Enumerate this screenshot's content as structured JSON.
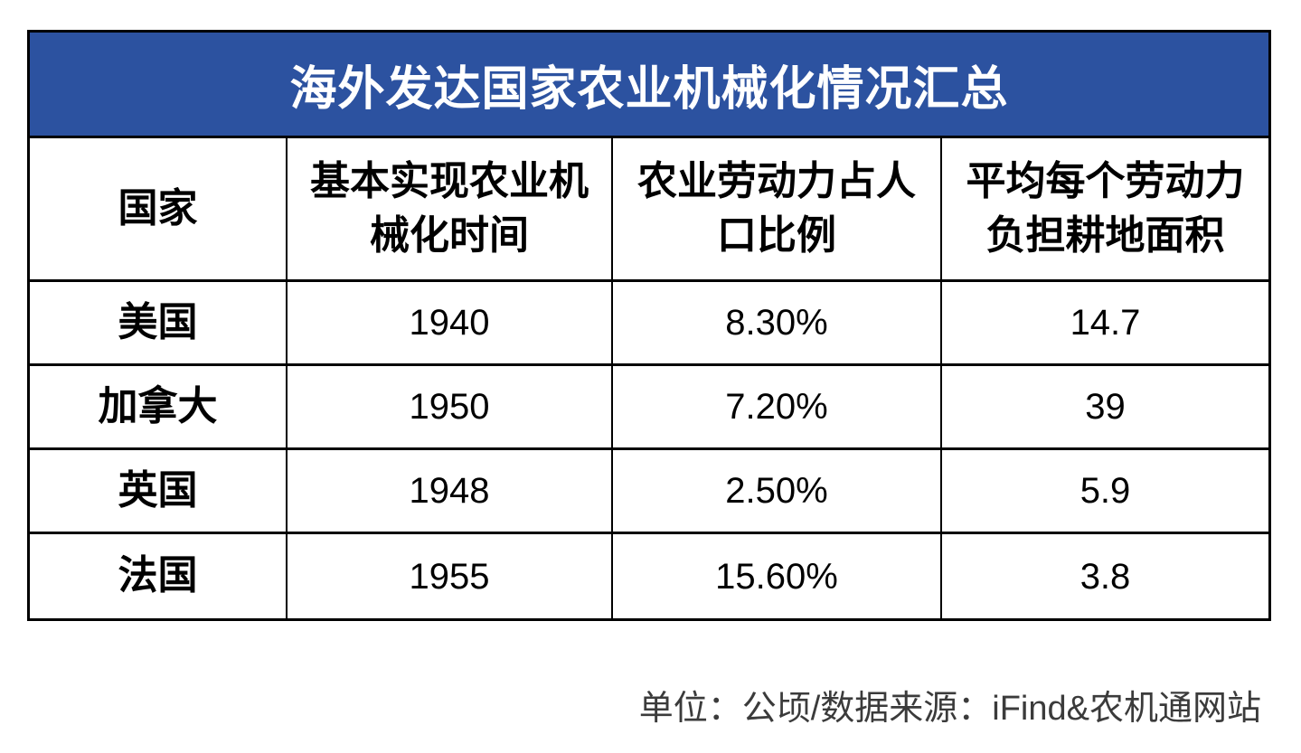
{
  "title": "海外发达国家农业机械化情况汇总",
  "table": {
    "headers": [
      {
        "lines": [
          "国家"
        ]
      },
      {
        "lines": [
          "基本实现农业机",
          "械化时间"
        ]
      },
      {
        "lines": [
          "农业劳动力占人",
          "口比例"
        ]
      },
      {
        "lines": [
          "平均每个劳动力",
          "负担耕地面积"
        ]
      }
    ],
    "rows": [
      {
        "country": "美国",
        "year": "1940",
        "labor_share": "8.30%",
        "land_area": "14.7"
      },
      {
        "country": "加拿大",
        "year": "1950",
        "labor_share": "7.20%",
        "land_area": "39"
      },
      {
        "country": "英国",
        "year": "1948",
        "labor_share": "2.50%",
        "land_area": "5.9"
      },
      {
        "country": "法国",
        "year": "1955",
        "labor_share": "15.60%",
        "land_area": "3.8"
      }
    ]
  },
  "footer": {
    "note": "单位：公顷/数据来源：iFind&农机通网站"
  },
  "colors": {
    "title_bg": "#2C52A0",
    "title_text": "#FFFFFF",
    "border": "#000000",
    "cell_text": "#000000",
    "footer_text": "#3B3B3B",
    "page_bg": "#FFFFFF"
  },
  "chart_data": {
    "type": "table",
    "title": "海外发达国家农业机械化情况汇总",
    "columns": [
      "国家",
      "基本实现农业机械化时间",
      "农业劳动力占人口比例",
      "平均每个劳动力负担耕地面积"
    ],
    "rows": [
      [
        "美国",
        "1940",
        "8.30%",
        "14.7"
      ],
      [
        "加拿大",
        "1950",
        "7.20%",
        "39"
      ],
      [
        "英国",
        "1948",
        "2.50%",
        "5.9"
      ],
      [
        "法国",
        "1955",
        "15.60%",
        "3.8"
      ]
    ],
    "note": "单位：公顷/数据来源：iFind&农机通网站",
    "unit": "公顷",
    "sources": [
      "iFind",
      "农机通网站"
    ]
  }
}
